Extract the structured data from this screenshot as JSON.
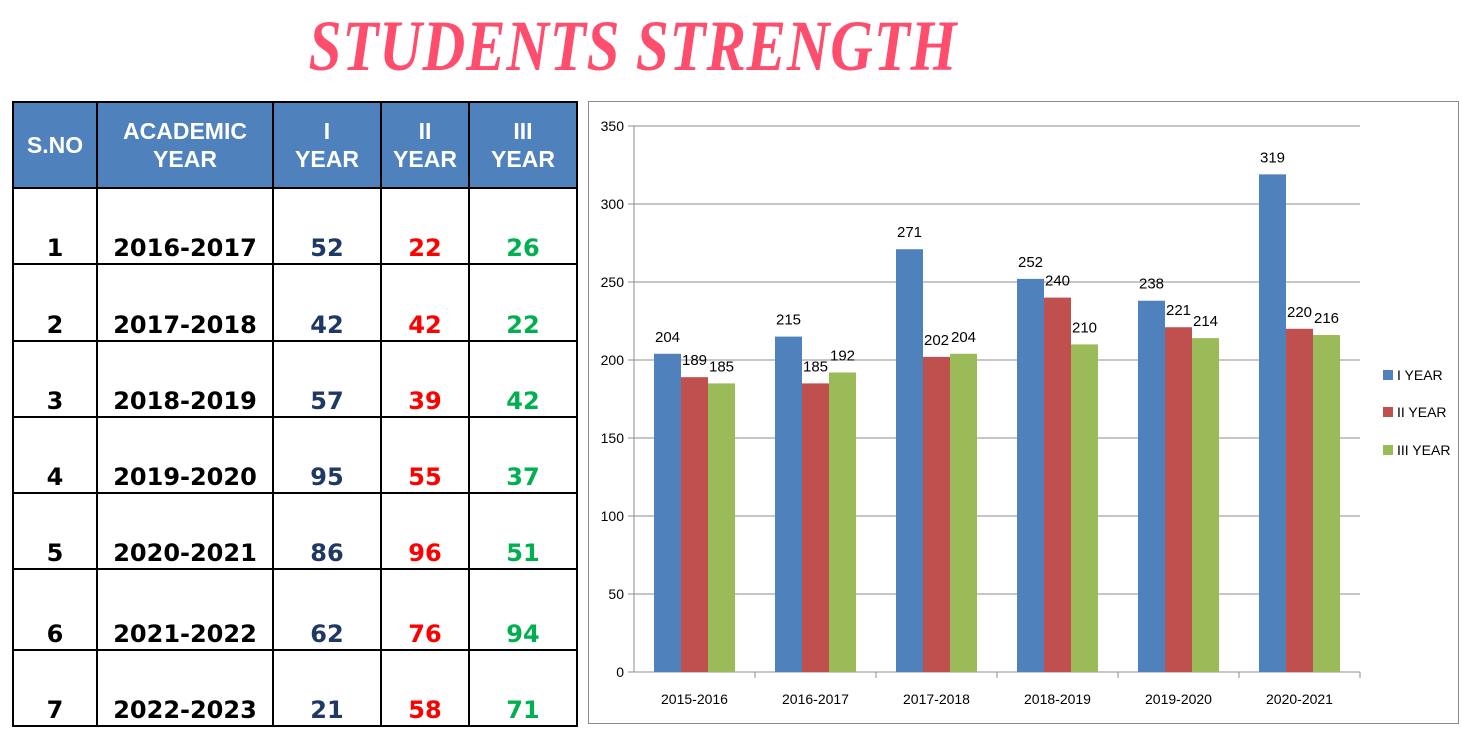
{
  "title": "STUDENTS STRENGTH",
  "table": {
    "headers": [
      {
        "line1": "S.NO",
        "line2": ""
      },
      {
        "line1": "ACADEMIC",
        "line2": "YEAR"
      },
      {
        "line1": "I",
        "line2": "YEAR"
      },
      {
        "line1": "II",
        "line2": "YEAR"
      },
      {
        "line1": "III",
        "line2": "YEAR"
      }
    ],
    "rows": [
      {
        "sno": "1",
        "year": "2016-2017",
        "i": "52",
        "ii": "22",
        "iii": "26"
      },
      {
        "sno": "2",
        "year": "2017-2018",
        "i": "42",
        "ii": "42",
        "iii": "22"
      },
      {
        "sno": "3",
        "year": "2018-2019",
        "i": "57",
        "ii": "39",
        "iii": "42"
      },
      {
        "sno": "4",
        "year": "2019-2020",
        "i": "95",
        "ii": "55",
        "iii": "37"
      },
      {
        "sno": "5",
        "year": "2020-2021",
        "i": "86",
        "ii": "96",
        "iii": "51"
      },
      {
        "sno": "6",
        "year": "2021-2022",
        "i": "62",
        "ii": "76",
        "iii": "94"
      },
      {
        "sno": "7",
        "year": "2022-2023",
        "i": "21",
        "ii": "58",
        "iii": "71"
      }
    ],
    "colors": {
      "header_bg": "#4f81bd",
      "i": "#1f3864",
      "ii": "#ff0000",
      "iii": "#00b050"
    }
  },
  "chart_data": {
    "type": "bar",
    "title": "",
    "xlabel": "",
    "ylabel": "",
    "categories": [
      "2015-2016",
      "2016-2017",
      "2017-2018",
      "2018-2019",
      "2019-2020",
      "2020-2021"
    ],
    "series": [
      {
        "name": "I YEAR",
        "color": "#4f81bd",
        "values": [
          204,
          215,
          271,
          252,
          238,
          319
        ]
      },
      {
        "name": "II YEAR",
        "color": "#c0504d",
        "values": [
          189,
          185,
          202,
          240,
          221,
          220
        ]
      },
      {
        "name": "III YEAR",
        "color": "#9bbb59",
        "values": [
          185,
          192,
          204,
          210,
          214,
          216
        ]
      }
    ],
    "ylim": [
      0,
      350
    ],
    "yticks": [
      0,
      50,
      100,
      150,
      200,
      250,
      300,
      350
    ],
    "grid": true,
    "legend": "right",
    "data_labels": true
  }
}
